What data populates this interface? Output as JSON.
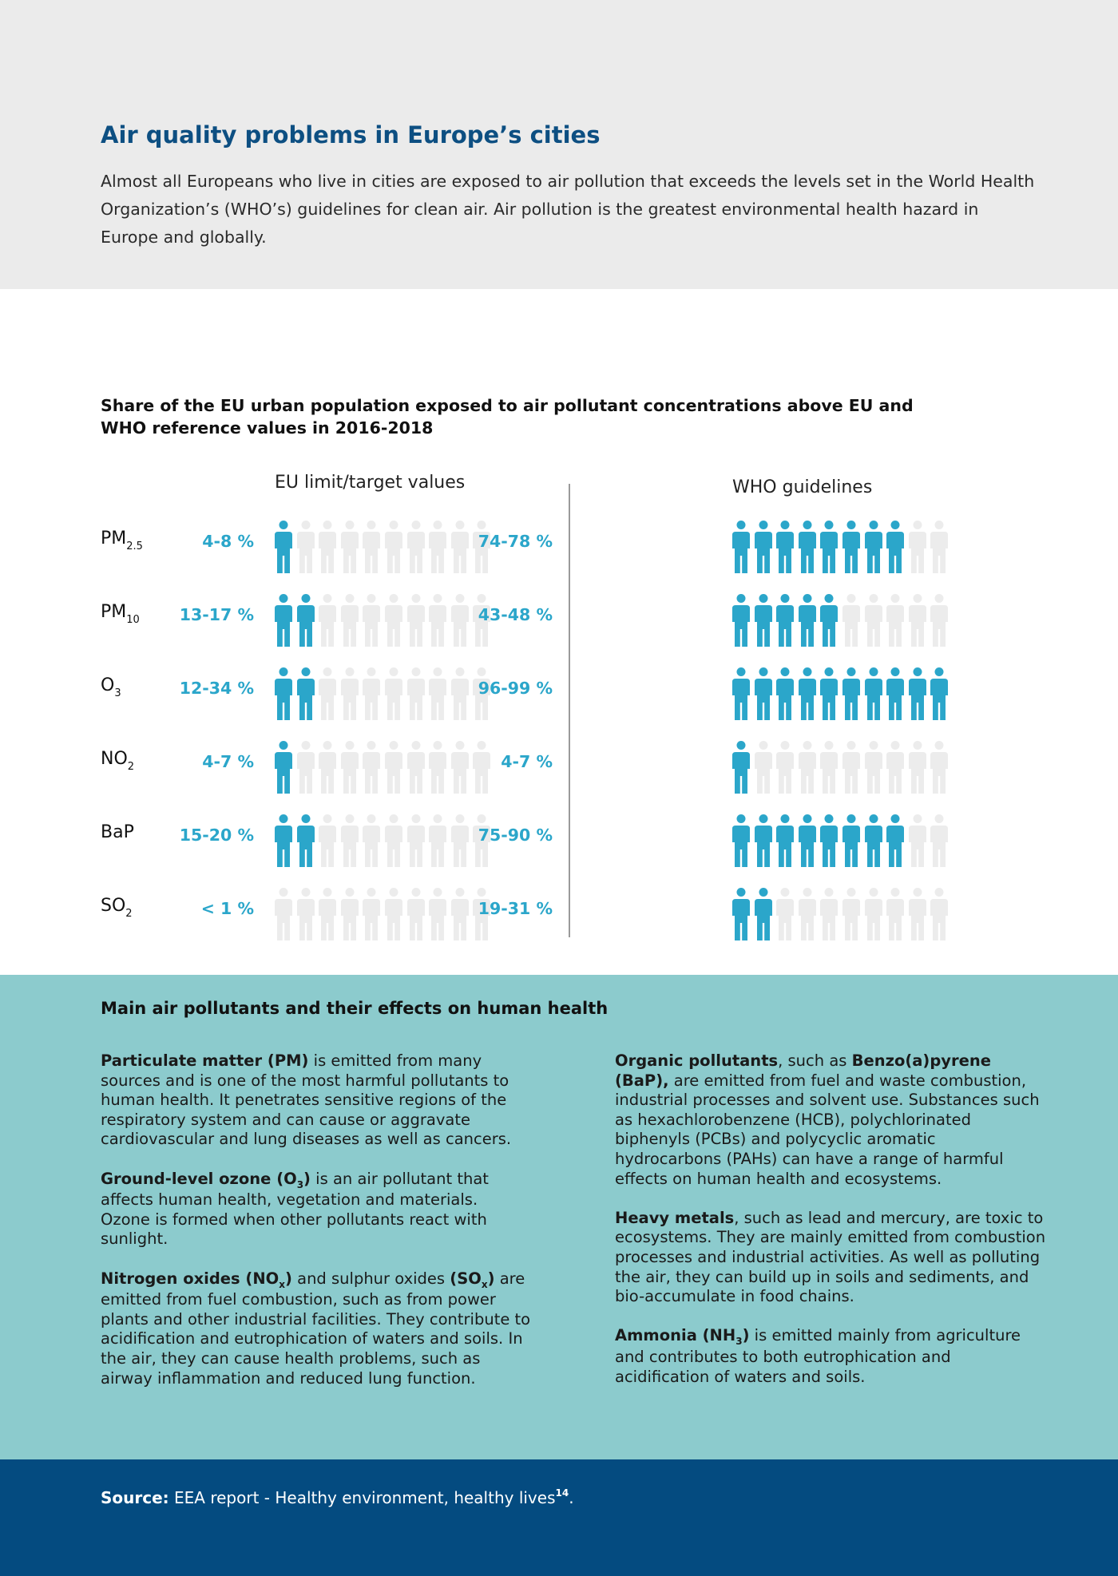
{
  "header": {
    "title": "Air quality problems in Europe’s cities",
    "intro": "Almost all Europeans who live in cities are exposed to air pollution that exceeds the levels set in the World Health Organization’s (WHO’s) guidelines for clean air. Air pollution is the greatest environmental health hazard in Europe and globally."
  },
  "chart_data": {
    "type": "pictogram",
    "title": "Share of the EU urban population exposed to air pollutant concentrations above EU and WHO reference values in 2016-2018",
    "icons_per_row": 10,
    "columns": [
      {
        "key": "eu",
        "label": "EU limit/target values"
      },
      {
        "key": "who",
        "label": "WHO guidelines"
      }
    ],
    "rows": [
      {
        "pollutant": "PM",
        "sub": "2.5",
        "eu_label": "4-8 %",
        "eu_icons": 1,
        "who_label": "74-78 %",
        "who_icons": 8
      },
      {
        "pollutant": "PM",
        "sub": "10",
        "eu_label": "13-17 %",
        "eu_icons": 2,
        "who_label": "43-48 %",
        "who_icons": 5
      },
      {
        "pollutant": "O",
        "sub": "3",
        "eu_label": "12-34 %",
        "eu_icons": 2,
        "who_label": "96-99 %",
        "who_icons": 10
      },
      {
        "pollutant": "NO",
        "sub": "2",
        "eu_label": "4-7 %",
        "eu_icons": 1,
        "who_label": "4-7 %",
        "who_icons": 1
      },
      {
        "pollutant": "BaP",
        "sub": "",
        "eu_label": "15-20 %",
        "eu_icons": 2,
        "who_label": "75-90 %",
        "who_icons": 8
      },
      {
        "pollutant": "SO",
        "sub": "2",
        "eu_label": "< 1 %",
        "eu_icons": 0,
        "who_label": "19-31 %",
        "who_icons": 2
      }
    ],
    "colors": {
      "filled": "#2ba6ca",
      "empty": "#ececec"
    }
  },
  "pollutants": {
    "title": "Main air pollutants and their effects on human health",
    "pm": {
      "bold": "Particulate matter (PM)",
      "text": " is emitted from many sources and is one of the most harmful pollutants to human health. It penetrates sensitive regions of the respiratory system and can cause or aggravate cardiovascular and lung diseases as well as cancers."
    },
    "ozone": {
      "bold": "Ground-level ozone (O",
      "sub": "3",
      "bold_end": ")",
      "text": " is an air pollutant that affects human health, vegetation and materials. Ozone is formed when other pollutants react with sunlight."
    },
    "nox": {
      "bold": "Nitrogen oxides (NO",
      "sub": "x",
      "bold_end": ")",
      "mid": " and sulphur oxides ",
      "bold2": "(SO",
      "sub2": "x",
      "bold2_end": ")",
      "text": " are emitted from fuel combustion, such as from power plants and other industrial facilities. They contribute to acidification and eutrophication of waters and soils. In the air, they can cause health problems, such as airway inflammation and reduced lung function."
    },
    "organic": {
      "bold": "Organic pollutants",
      "mid": ", such as ",
      "bold2": "Benzo(a)pyrene (BaP),",
      "text": " are emitted from fuel and waste combustion, industrial processes and solvent use. Substances such as hexachlorobenzene (HCB), polychlorinated biphenyls (PCBs) and polycyclic aromatic hydrocarbons (PAHs) can have a range of harmful effects on human health and ecosystems."
    },
    "metals": {
      "bold": "Heavy metals",
      "text": ", such as lead and mercury, are toxic to ecosystems. They are mainly emitted from combustion processes and industrial activities. As well as polluting the air, they can build up in soils and sediments, and bio-accumulate in food chains."
    },
    "ammonia": {
      "bold": "Ammonia (NH",
      "sub": "3",
      "bold_end": ")",
      "text": " is emitted mainly from agriculture and contributes to both eutrophication and acidification of waters and soils."
    }
  },
  "footer": {
    "source_label": "Source:",
    "source_text": " EEA report - Healthy environment, healthy lives",
    "ref": "14",
    "end": "."
  }
}
